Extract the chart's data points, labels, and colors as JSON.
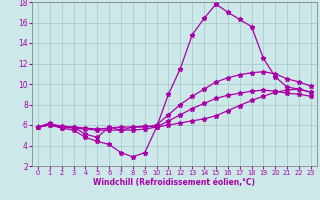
{
  "bg_color": "#cce8e8",
  "grid_color": "#aacccc",
  "line_color": "#aa00aa",
  "xlabel": "Windchill (Refroidissement éolien,°C)",
  "xlim": [
    -0.5,
    23.5
  ],
  "ylim": [
    2,
    18
  ],
  "yticks": [
    2,
    4,
    6,
    8,
    10,
    12,
    14,
    16,
    18
  ],
  "xticks": [
    0,
    1,
    2,
    3,
    4,
    5,
    6,
    7,
    8,
    9,
    10,
    11,
    12,
    13,
    14,
    15,
    16,
    17,
    18,
    19,
    20,
    21,
    22,
    23
  ],
  "curves": [
    {
      "x": [
        0,
        1,
        2,
        3,
        4,
        5,
        6,
        7,
        8,
        9,
        10,
        11,
        12,
        13,
        14,
        15,
        16,
        17,
        18,
        19,
        20,
        21,
        22,
        23
      ],
      "y": [
        5.8,
        6.2,
        5.7,
        5.8,
        5.1,
        4.8,
        5.8,
        5.5,
        5.8,
        5.9,
        5.8,
        9.0,
        11.5,
        14.8,
        16.4,
        17.8,
        17.0,
        16.3,
        15.6,
        12.5,
        10.7,
        9.7,
        9.5,
        9.2
      ]
    },
    {
      "x": [
        0,
        1,
        2,
        3,
        4,
        5,
        6,
        7,
        8,
        9,
        10,
        11,
        12,
        13,
        14,
        15,
        16,
        17,
        18,
        19,
        20,
        21,
        22,
        23
      ],
      "y": [
        5.8,
        6.0,
        5.7,
        5.5,
        4.8,
        4.4,
        4.1,
        3.3,
        2.9,
        3.3,
        5.8,
        6.0,
        6.2,
        6.4,
        6.6,
        6.9,
        7.4,
        7.9,
        8.4,
        8.8,
        9.2,
        9.4,
        9.5,
        9.2
      ]
    },
    {
      "x": [
        0,
        1,
        2,
        3,
        4,
        5,
        6,
        7,
        8,
        9,
        10,
        11,
        12,
        13,
        14,
        15,
        16,
        17,
        18,
        19,
        20,
        21,
        22,
        23
      ],
      "y": [
        5.8,
        6.1,
        5.9,
        5.8,
        5.7,
        5.6,
        5.7,
        5.8,
        5.8,
        5.8,
        6.0,
        7.0,
        8.0,
        8.8,
        9.5,
        10.2,
        10.6,
        10.9,
        11.1,
        11.2,
        11.0,
        10.5,
        10.2,
        9.8
      ]
    },
    {
      "x": [
        0,
        1,
        2,
        3,
        4,
        5,
        6,
        7,
        8,
        9,
        10,
        11,
        12,
        13,
        14,
        15,
        16,
        17,
        18,
        19,
        20,
        21,
        22,
        23
      ],
      "y": [
        5.8,
        6.0,
        5.8,
        5.7,
        5.6,
        5.5,
        5.5,
        5.5,
        5.5,
        5.6,
        5.8,
        6.4,
        7.0,
        7.6,
        8.1,
        8.6,
        8.9,
        9.1,
        9.3,
        9.4,
        9.3,
        9.1,
        9.0,
        8.8
      ]
    }
  ]
}
